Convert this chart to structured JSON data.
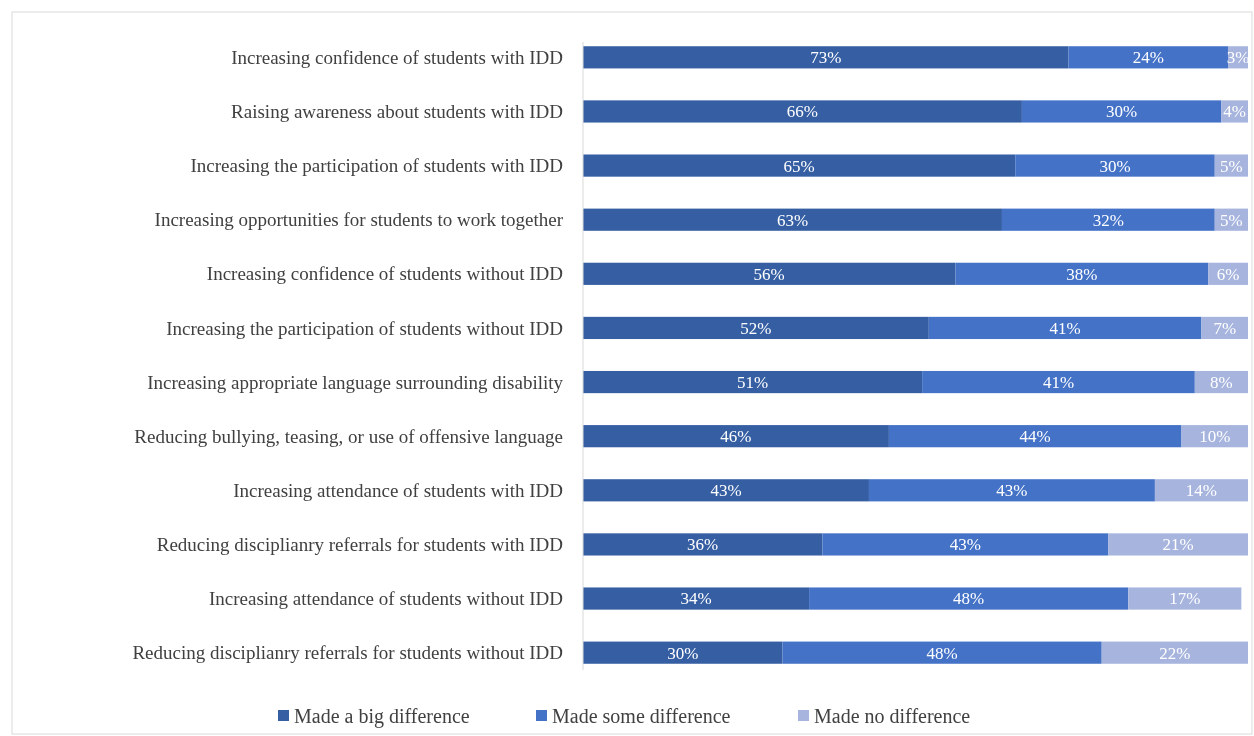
{
  "chart_data": {
    "type": "bar",
    "orientation": "horizontal",
    "stacked": true,
    "categories": [
      "Increasing confidence of students with IDD",
      "Raising awareness about students with IDD",
      "Increasing the participation of students with IDD",
      "Increasing opportunities for students to work together",
      "Increasing confidence of students without IDD",
      "Increasing the participation of students without IDD",
      "Increasing appropriate language surrounding disability",
      "Reducing bullying, teasing, or use of offensive language",
      "Increasing attendance of students with IDD",
      "Reducing disciplianry referrals for students with IDD",
      "Increasing attendance of students without IDD",
      "Reducing disciplianry referrals for students without IDD"
    ],
    "series": [
      {
        "name": "Made a big difference",
        "color": "#365fa3",
        "values": [
          73,
          66,
          65,
          63,
          56,
          52,
          51,
          46,
          43,
          36,
          34,
          30
        ],
        "value_labels": [
          "73%",
          "66%",
          "65%",
          "63%",
          "56%",
          "52%",
          "51%",
          "46%",
          "43%",
          "36%",
          "34%",
          "30%"
        ]
      },
      {
        "name": "Made some difference",
        "color": "#4472c7",
        "values": [
          24,
          30,
          30,
          32,
          38,
          41,
          41,
          44,
          43,
          43,
          48,
          48
        ],
        "value_labels": [
          "24%",
          "30%",
          "30%",
          "32%",
          "38%",
          "41%",
          "41%",
          "44%",
          "43%",
          "43%",
          "48%",
          "48%"
        ]
      },
      {
        "name": "Made no difference",
        "color": "#a7b5de",
        "values": [
          3,
          4,
          5,
          5,
          6,
          7,
          8,
          10,
          14,
          21,
          17,
          22
        ],
        "value_labels": [
          "3%",
          "4%",
          "5%",
          "5%",
          "6%",
          "7%",
          "8%",
          "10%",
          "14%",
          "21%",
          "17%",
          "22%"
        ]
      }
    ],
    "xlim": [
      0,
      100
    ],
    "tick_labels": "y",
    "legend": "bottom"
  }
}
